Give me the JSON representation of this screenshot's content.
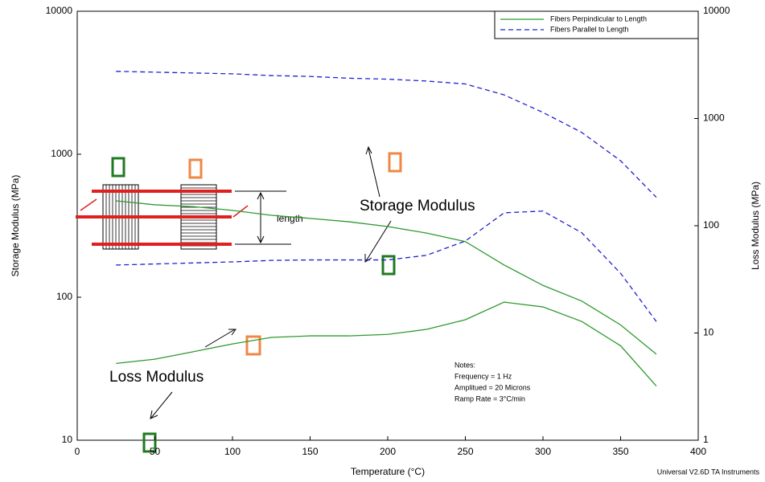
{
  "chart_data": {
    "type": "line",
    "log_scale": true,
    "x_label": "Temperature (°C)",
    "y_label": "Storage Modulus (MPa)",
    "y2_label": "Loss Modulus (MPa)",
    "xlim": [
      0,
      400
    ],
    "xticks": [
      0,
      50,
      100,
      150,
      200,
      250,
      300,
      350,
      400
    ],
    "ylim": [
      10,
      10000
    ],
    "yticks": [
      10,
      100,
      1000,
      10000
    ],
    "y2lim": [
      1,
      10000
    ],
    "y2ticks": [
      1,
      10,
      100,
      1000,
      10000
    ],
    "legend": "top-right",
    "x": [
      25,
      50,
      75,
      100,
      125,
      150,
      175,
      200,
      225,
      250,
      275,
      300,
      325,
      350,
      373
    ],
    "series": [
      {
        "name": "Fibers Perpindicular to Length",
        "color": "#2e9a2e",
        "line_style": "solid",
        "values": [
          472,
          443,
          430,
          405,
          374,
          356,
          337,
          312,
          281,
          245,
          168,
          121,
          94,
          64,
          40
        ]
      },
      {
        "name": "Fibers Parallel to Length",
        "color": "#2020d0",
        "line_style": "dashed",
        "values": [
          3800,
          3750,
          3700,
          3650,
          3550,
          3500,
          3400,
          3350,
          3250,
          3100,
          2600,
          1960,
          1420,
          900,
          500
        ]
      },
      {
        "color": "#2e9a2e",
        "line_style": "solid",
        "axis": "y2",
        "values": [
          5.2,
          5.7,
          6.7,
          7.9,
          9.1,
          9.4,
          9.4,
          9.7,
          10.8,
          13.3,
          19.4,
          17.5,
          12.8,
          7.6,
          3.2
        ]
      },
      {
        "color": "#2020d0",
        "line_style": "dashed",
        "axis": "y2",
        "values": [
          43,
          44,
          45,
          46,
          47.5,
          48,
          48,
          48,
          53,
          72,
          132,
          137,
          86,
          36,
          12.8
        ]
      }
    ],
    "annotations": [
      "Storage Modulus",
      "Loss Modulus",
      "length"
    ],
    "notes": [
      "Notes:",
      "Frequency = 1 Hz",
      "Amplitued = 20 Microns",
      "Ramp Rate = 3°C/min"
    ],
    "footer": "Universal V2.6D TA Instruments"
  }
}
